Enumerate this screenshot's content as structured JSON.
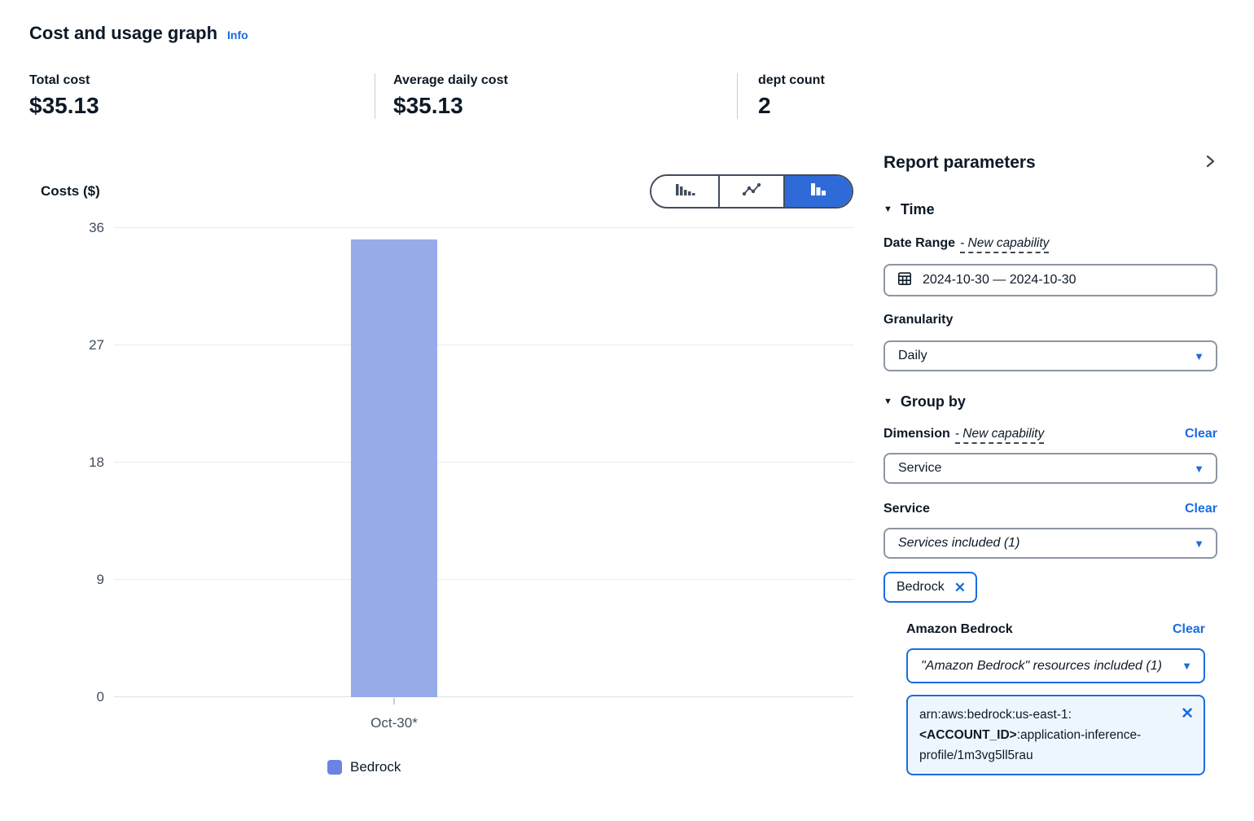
{
  "colors": {
    "accent": "#1a6ce0",
    "toggle_selected": "#2e6bd8",
    "legend_swatch": "#6b84e3"
  },
  "header": {
    "title": "Cost and usage graph",
    "info": "Info"
  },
  "metrics": {
    "items": [
      {
        "label": "Total cost",
        "value": "$35.13"
      },
      {
        "label": "Average daily cost",
        "value": "$35.13"
      },
      {
        "label": "dept count",
        "value": "2"
      }
    ]
  },
  "chart": {
    "toggle": {
      "options": [
        "bar-chart",
        "line-chart",
        "stacked-bar-chart"
      ],
      "selected_index": 2
    }
  },
  "chart_data": {
    "type": "bar",
    "title": "Cost and usage graph",
    "categories": [
      "Oct-30*"
    ],
    "series": [
      {
        "name": "Bedrock",
        "values": [
          35.13
        ],
        "color": "#98abe9"
      }
    ],
    "ylabel": "Costs ($)",
    "xlabel": "",
    "ylim": [
      0,
      36
    ],
    "yticks": [
      0,
      9,
      18,
      27,
      36
    ],
    "grid": true,
    "legend_position": "bottom"
  },
  "panel": {
    "title": "Report parameters",
    "time": {
      "heading": "Time",
      "date_range_label": "Date Range",
      "date_range_badge": "- New capability",
      "date_value": "2024-10-30 — 2024-10-30",
      "granularity_label": "Granularity",
      "granularity_value": "Daily"
    },
    "group_by": {
      "heading": "Group by",
      "dimension_label": "Dimension",
      "dimension_badge": "- New capability",
      "dimension_clear": "Clear",
      "dimension_value": "Service",
      "service_label": "Service",
      "service_clear": "Clear",
      "service_value": "Services included (1)",
      "service_tag": "Bedrock",
      "bedrock_label": "Amazon Bedrock",
      "bedrock_clear": "Clear",
      "bedrock_value": "\"Amazon Bedrock\" resources included (1)",
      "arn": {
        "prefix": "arn:aws:bedrock:us-east-1:",
        "account": "<ACCOUNT_ID>",
        "suffix": ":application-inference-profile/1m3vg5ll5rau"
      }
    }
  }
}
